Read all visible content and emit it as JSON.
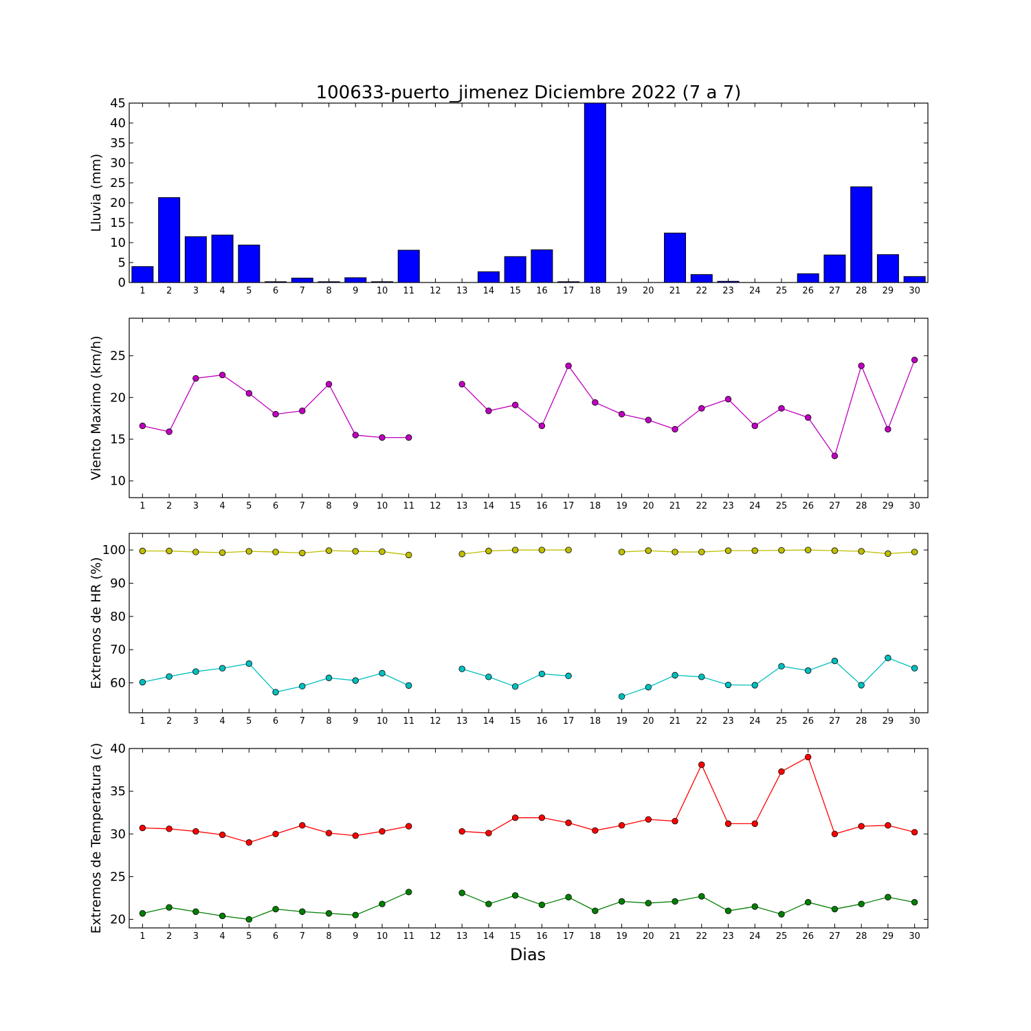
{
  "figure": {
    "title": "100633-puerto_jimenez Diciembre 2022  (7 a 7)",
    "xlabel": "Dias"
  },
  "colors": {
    "rain_bar": "#0000ff",
    "wind_line": "#bf00bf",
    "hr_max_line": "#bfbf00",
    "hr_min_line": "#00bfbf",
    "temp_max_line": "#ff0000",
    "temp_min_line": "#007f00",
    "axis": "#000000"
  },
  "chart_data": [
    {
      "id": "rain",
      "type": "bar",
      "ylabel": "Lluvia (mm)",
      "ylim": [
        0,
        45
      ],
      "yticks": [
        0,
        5,
        10,
        15,
        20,
        25,
        30,
        35,
        40,
        45
      ],
      "categories": [
        1,
        2,
        3,
        4,
        5,
        6,
        7,
        8,
        9,
        10,
        11,
        12,
        13,
        14,
        15,
        16,
        17,
        18,
        19,
        20,
        21,
        22,
        23,
        24,
        25,
        26,
        27,
        28,
        29,
        30
      ],
      "series": [
        {
          "color_key": "rain_bar",
          "values": [
            4.0,
            21.3,
            11.5,
            11.9,
            9.4,
            0.2,
            1.1,
            0.2,
            1.2,
            0.2,
            8.1,
            0.0,
            0.0,
            2.7,
            6.5,
            8.2,
            0.2,
            45.0,
            0.0,
            0.0,
            12.4,
            2.0,
            0.3,
            0.0,
            0.0,
            2.2,
            6.9,
            24.0,
            7.0,
            1.5
          ]
        }
      ]
    },
    {
      "id": "wind",
      "type": "line",
      "ylabel": "Viento Maximo (km/h)",
      "ylim": [
        8,
        29.5
      ],
      "yticks": [
        10,
        15,
        20,
        25
      ],
      "categories": [
        1,
        2,
        3,
        4,
        5,
        6,
        7,
        8,
        9,
        10,
        11,
        12,
        13,
        14,
        15,
        16,
        17,
        18,
        19,
        20,
        21,
        22,
        23,
        24,
        25,
        26,
        27,
        28,
        29,
        30
      ],
      "series": [
        {
          "color_key": "wind_line",
          "values": [
            16.6,
            15.9,
            22.3,
            22.7,
            20.5,
            18.0,
            18.4,
            21.6,
            15.5,
            15.2,
            15.2,
            null,
            21.6,
            18.4,
            19.1,
            16.6,
            23.8,
            19.4,
            18.0,
            17.3,
            16.2,
            18.7,
            19.8,
            16.6,
            18.7,
            17.6,
            13.0,
            23.8,
            16.2,
            24.5
          ]
        }
      ]
    },
    {
      "id": "humidity",
      "type": "line",
      "ylabel": "Extremos de HR (%)",
      "ylim": [
        51,
        105
      ],
      "yticks": [
        60,
        70,
        80,
        90,
        100
      ],
      "categories": [
        1,
        2,
        3,
        4,
        5,
        6,
        7,
        8,
        9,
        10,
        11,
        12,
        13,
        14,
        15,
        16,
        17,
        18,
        19,
        20,
        21,
        22,
        23,
        24,
        25,
        26,
        27,
        28,
        29,
        30
      ],
      "series": [
        {
          "color_key": "hr_max_line",
          "values": [
            99.7,
            99.7,
            99.4,
            99.2,
            99.6,
            99.4,
            99.1,
            99.8,
            99.6,
            99.5,
            98.5,
            null,
            98.8,
            99.7,
            100.0,
            100.0,
            100.0,
            null,
            99.4,
            99.8,
            99.4,
            99.4,
            99.8,
            99.8,
            99.9,
            100.0,
            99.8,
            99.6,
            98.9,
            99.4
          ]
        },
        {
          "color_key": "hr_min_line",
          "values": [
            60.2,
            61.9,
            63.4,
            64.4,
            65.8,
            57.2,
            59.0,
            61.5,
            60.7,
            62.9,
            59.2,
            null,
            64.2,
            61.8,
            58.9,
            62.7,
            62.1,
            null,
            55.9,
            58.7,
            62.3,
            61.8,
            59.4,
            59.3,
            65.0,
            63.7,
            66.6,
            59.3,
            67.5,
            64.4
          ]
        }
      ]
    },
    {
      "id": "temperature",
      "type": "line",
      "ylabel": "Extremos de Temperatura (c)",
      "ylim": [
        19,
        40
      ],
      "yticks": [
        20,
        25,
        30,
        35,
        40
      ],
      "categories": [
        1,
        2,
        3,
        4,
        5,
        6,
        7,
        8,
        9,
        10,
        11,
        12,
        13,
        14,
        15,
        16,
        17,
        18,
        19,
        20,
        21,
        22,
        23,
        24,
        25,
        26,
        27,
        28,
        29,
        30
      ],
      "series": [
        {
          "color_key": "temp_max_line",
          "values": [
            30.7,
            30.6,
            30.3,
            29.9,
            29.0,
            30.0,
            31.0,
            30.1,
            29.8,
            30.3,
            30.9,
            null,
            30.3,
            30.1,
            31.9,
            31.9,
            31.3,
            30.4,
            31.0,
            31.7,
            31.5,
            38.1,
            31.2,
            31.2,
            37.3,
            39.0,
            30.0,
            30.9,
            31.0,
            30.2
          ]
        },
        {
          "color_key": "temp_min_line",
          "values": [
            20.7,
            21.4,
            20.9,
            20.4,
            20.0,
            21.2,
            20.9,
            20.7,
            20.5,
            21.8,
            23.2,
            null,
            23.1,
            21.8,
            22.8,
            21.7,
            22.6,
            21.0,
            22.1,
            21.9,
            22.1,
            22.7,
            21.0,
            21.5,
            20.6,
            22.0,
            21.2,
            21.8,
            22.6,
            22.0
          ]
        }
      ]
    }
  ]
}
